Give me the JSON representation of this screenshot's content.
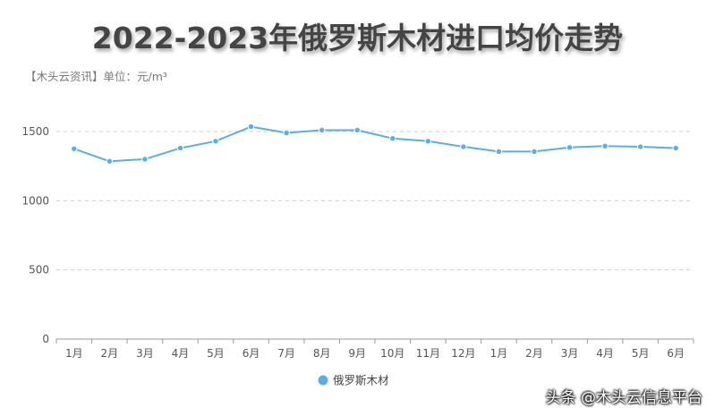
{
  "title": "2022-2023年俄罗斯木材进口均价走势",
  "source": "【木头云资讯】单位：元/m³",
  "watermark": "头条 @木头云信息平台",
  "chart_data": {
    "type": "line",
    "categories": [
      "1月",
      "2月",
      "3月",
      "4月",
      "5月",
      "6月",
      "7月",
      "8月",
      "9月",
      "10月",
      "11月",
      "12月",
      "1月",
      "2月",
      "3月",
      "4月",
      "5月",
      "6月"
    ],
    "series": [
      {
        "name": "俄罗斯木材",
        "color": "#5aaee8",
        "values": [
          1375,
          1285,
          1300,
          1380,
          1430,
          1535,
          1490,
          1510,
          1510,
          1450,
          1430,
          1390,
          1355,
          1355,
          1385,
          1395,
          1390,
          1380
        ]
      }
    ],
    "yticks": [
      0,
      500,
      1000,
      1500
    ],
    "ylim": [
      0,
      1750
    ],
    "grid": true,
    "legend": "bottom-center"
  }
}
